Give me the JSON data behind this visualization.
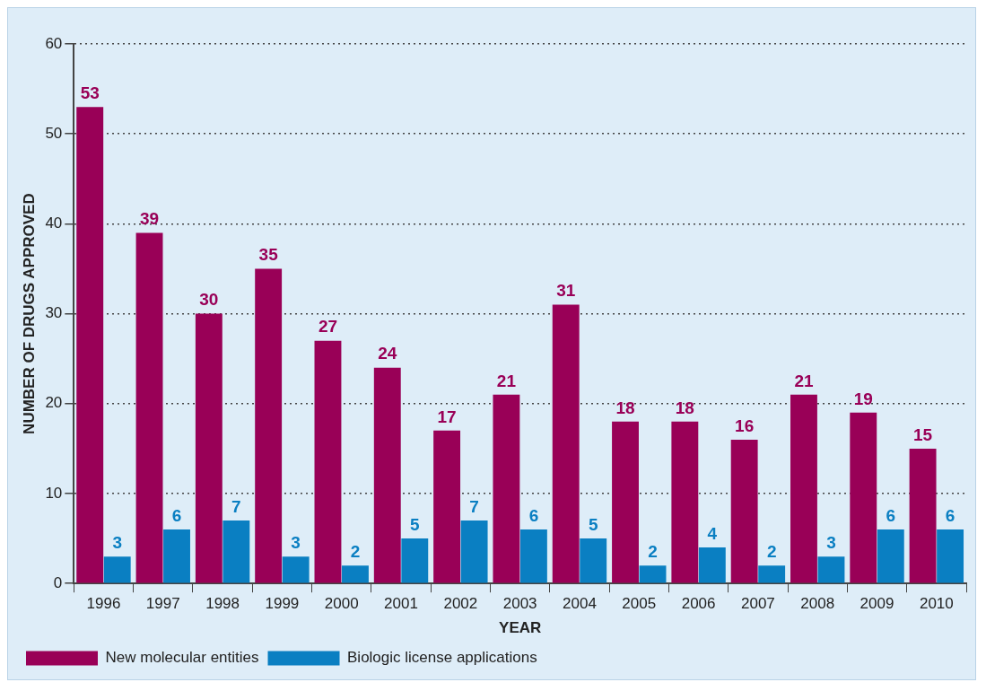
{
  "chart_data": {
    "type": "bar",
    "xlabel": "YEAR",
    "ylabel": "NUMBER OF DRUGS APPROVED",
    "categories": [
      "1996",
      "1997",
      "1998",
      "1999",
      "2000",
      "2001",
      "2002",
      "2003",
      "2004",
      "2005",
      "2006",
      "2007",
      "2008",
      "2009",
      "2010"
    ],
    "series": [
      {
        "name": "New molecular entities",
        "color": "#990057",
        "values": [
          53,
          39,
          30,
          35,
          27,
          24,
          17,
          21,
          31,
          18,
          18,
          16,
          21,
          19,
          15
        ]
      },
      {
        "name": "Biologic license applications",
        "color": "#0a7fc2",
        "values": [
          3,
          6,
          7,
          3,
          2,
          5,
          7,
          6,
          5,
          2,
          4,
          2,
          3,
          6,
          6
        ]
      }
    ],
    "ylim": [
      0,
      60
    ],
    "yticks": [
      0,
      10,
      20,
      30,
      40,
      50,
      60
    ],
    "grid": "y",
    "legend": "bottom left",
    "data_labels": true
  }
}
